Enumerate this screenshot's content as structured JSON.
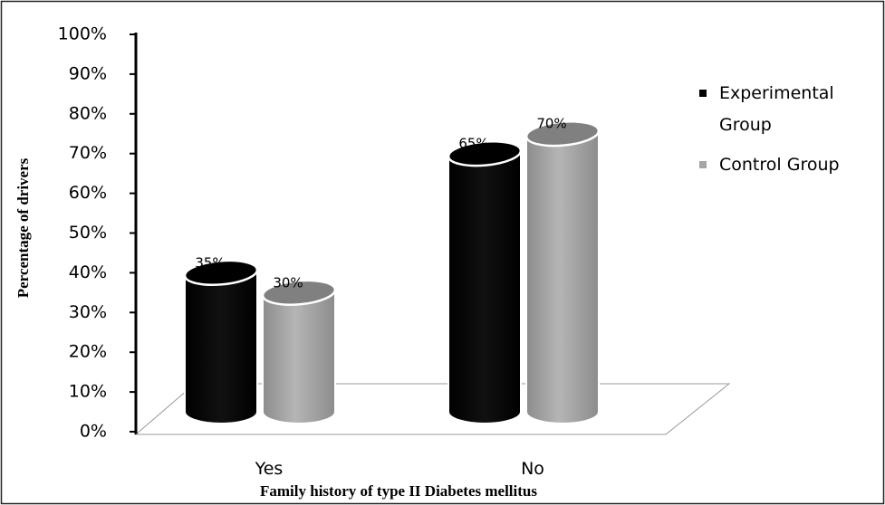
{
  "chart_data": {
    "type": "cylinder_bar",
    "categories": [
      "Yes",
      "No"
    ],
    "series": [
      {
        "name": "Experimental Group",
        "color": "#000000",
        "values": [
          35,
          65
        ],
        "value_labels": [
          "35%",
          "65%"
        ]
      },
      {
        "name": "Control Group",
        "color": "#a6a6a6",
        "values": [
          30,
          70
        ],
        "value_labels": [
          "30%",
          "70%"
        ]
      }
    ],
    "ylim": [
      0,
      100
    ],
    "yticks": [
      {
        "value": 0,
        "label": "0%"
      },
      {
        "value": 10,
        "label": "10%"
      },
      {
        "value": 20,
        "label": "20%"
      },
      {
        "value": 30,
        "label": "30%"
      },
      {
        "value": 40,
        "label": "40%"
      },
      {
        "value": 50,
        "label": "50%"
      },
      {
        "value": 60,
        "label": "60%"
      },
      {
        "value": 70,
        "label": "70%"
      },
      {
        "value": 80,
        "label": "80%"
      },
      {
        "value": 90,
        "label": "90%"
      },
      {
        "value": 100,
        "label": "100%"
      }
    ],
    "y_label": "Percentage of drivers",
    "x_label": "Family history of type II Diabetes mellitus",
    "legend": "right"
  }
}
